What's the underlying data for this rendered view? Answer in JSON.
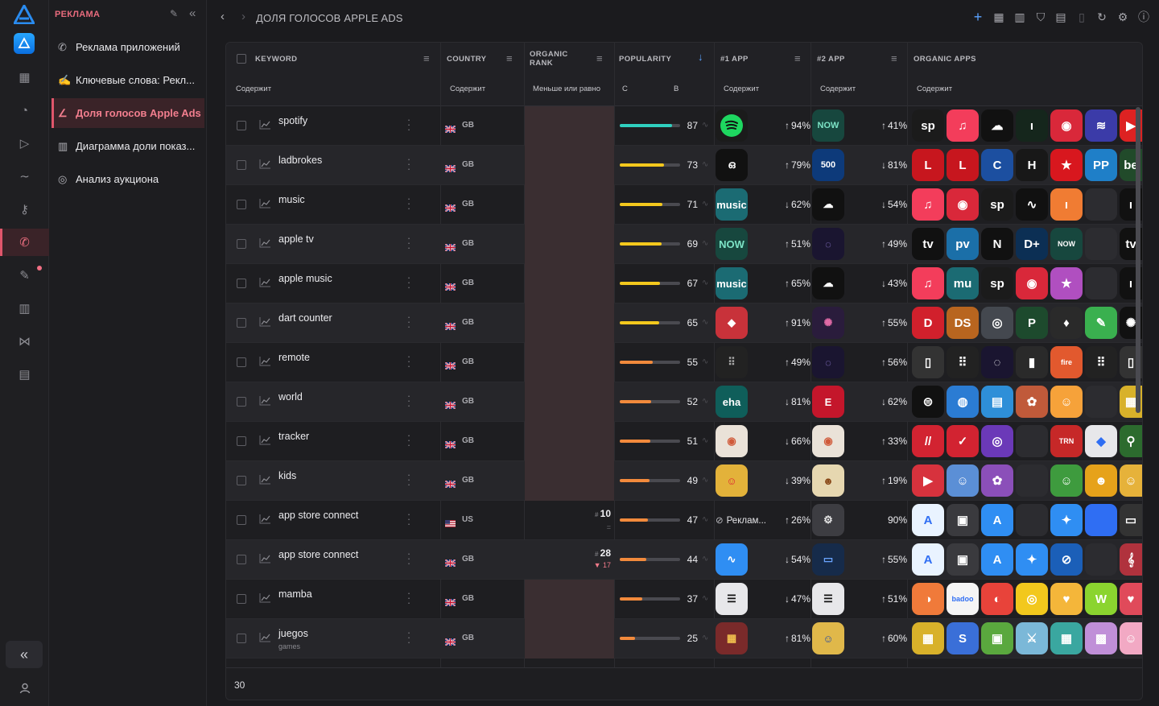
{
  "section_label": "РЕКЛАМА",
  "nav_items": [
    {
      "label": "Реклама приложений",
      "icon": "megaphone-icon",
      "active": false
    },
    {
      "label": "Ключевые слова: Рекл...",
      "icon": "keywords-icon",
      "active": false
    },
    {
      "label": "Доля голосов Apple Ads",
      "icon": "chart-line-icon",
      "active": true
    },
    {
      "label": "Диаграмма доли показ...",
      "icon": "chart-bar-icon",
      "active": false
    },
    {
      "label": "Анализ аукциона",
      "icon": "auction-icon",
      "active": false
    }
  ],
  "page_title": "ДОЛЯ ГОЛОСОВ APPLE ADS",
  "columns": {
    "keyword": "KEYWORD",
    "country": "COUNTRY",
    "organic_rank": "ORGANIC RANK",
    "popularity": "POPULARITY",
    "app1": "#1 APP",
    "app2": "#2 APP",
    "organic_apps": "ORGANIC APPS"
  },
  "filters": {
    "keyword": "Содержит",
    "country": "Содержит",
    "organic_rank": "Меньше или равно",
    "pop_from": "С",
    "pop_to": "В",
    "app1": "Содержит",
    "app2": "Содержит",
    "organic_apps": "Содержит"
  },
  "colors": {
    "accent": "#e0566b",
    "pop_teal": "#2fd0bf",
    "pop_yellow": "#f3c81d",
    "pop_orange": "#f28a3c",
    "rank_empty": "#3a2e31"
  },
  "rows": [
    {
      "keyword": "spotify",
      "sub": "",
      "cc": "GB",
      "rank": "",
      "rank_sub": "",
      "pop": 87,
      "a1_share": "94%",
      "a1_dir": "up",
      "a2_share": "41%",
      "a2_dir": "up",
      "a1": {
        "bg": "#1b1b1b",
        "txt": "",
        "fg": "#1ed760",
        "kind": "spotify"
      },
      "a2": {
        "bg": "#17473e",
        "txt": "NOW",
        "fg": "#7de3c6"
      },
      "org": [
        "#1b1b1b|sp",
        "#f33d5b|♫",
        "#111|☁",
        "#15261c|ı|",
        "#d9283a|◉",
        "#3b3ba8|≋",
        "#d22|▶"
      ]
    },
    {
      "keyword": "ladbrokes",
      "sub": "",
      "cc": "GB",
      "rank": "",
      "rank_sub": "",
      "pop": 73,
      "a1_share": "79%",
      "a1_dir": "up",
      "a2_share": "81%",
      "a2_dir": "down",
      "a1": {
        "bg": "#111",
        "txt": "ഒ",
        "fg": "#fff"
      },
      "a2": {
        "bg": "#0d3a7a",
        "txt": "500",
        "fg": "#fff"
      },
      "org": [
        "#c7161e|L",
        "#c7161e|L",
        "#1c4fa0|C",
        "#181818|H",
        "#d8171e|★",
        "#1f7fc8|PP",
        "#214a2a|be"
      ]
    },
    {
      "keyword": "music",
      "sub": "",
      "cc": "GB",
      "rank": "",
      "rank_sub": "",
      "pop": 71,
      "a1_share": "62%",
      "a1_dir": "down",
      "a2_share": "54%",
      "a2_dir": "down",
      "a1": {
        "bg": "#1b6b73",
        "txt": "music",
        "fg": "#fff"
      },
      "a2": {
        "bg": "#111",
        "txt": "☁",
        "fg": "#fff"
      },
      "org": [
        "#f33d5b|♫",
        "#d9283a|◉",
        "#1b1b1b|sp",
        "#111|∿",
        "#f07c33|ı|",
        "#2c2c30|",
        "#111|ı"
      ]
    },
    {
      "keyword": "apple tv",
      "sub": "",
      "cc": "GB",
      "rank": "",
      "rank_sub": "",
      "pop": 69,
      "a1_share": "51%",
      "a1_dir": "up",
      "a2_share": "49%",
      "a2_dir": "up",
      "a1": {
        "bg": "#17473e",
        "txt": "NOW",
        "fg": "#7de3c6"
      },
      "a2": {
        "bg": "#1a1530",
        "txt": "◌",
        "fg": "#a58cf0"
      },
      "org": [
        "#111|tv",
        "#1b6fa8|pv",
        "#111|N",
        "#0c2f54|D+",
        "#17473e|NOW",
        "#2c2c30|",
        "#111|tv"
      ]
    },
    {
      "keyword": "apple music",
      "sub": "",
      "cc": "GB",
      "rank": "",
      "rank_sub": "",
      "pop": 67,
      "a1_share": "65%",
      "a1_dir": "up",
      "a2_share": "43%",
      "a2_dir": "down",
      "a1": {
        "bg": "#1b6b73",
        "txt": "music",
        "fg": "#fff"
      },
      "a2": {
        "bg": "#111",
        "txt": "☁",
        "fg": "#fff"
      },
      "org": [
        "#f33d5b|♫",
        "#1b6b73|mu",
        "#1b1b1b|sp",
        "#d9283a|◉",
        "#b04fc0|★",
        "#2c2c30|",
        "#111|ı"
      ]
    },
    {
      "keyword": "dart counter",
      "sub": "",
      "cc": "GB",
      "rank": "",
      "rank_sub": "",
      "pop": 65,
      "a1_share": "91%",
      "a1_dir": "up",
      "a2_share": "55%",
      "a2_dir": "up",
      "a1": {
        "bg": "#c8323a",
        "txt": "◆",
        "fg": "#fff"
      },
      "a2": {
        "bg": "#2a1c3c",
        "txt": "✺",
        "fg": "#e06aa6"
      },
      "org": [
        "#d1202c|D",
        "#b8651f|DS",
        "#44484f|◎",
        "#1d4a2d|P",
        "#2a2a2a|♦",
        "#3ab04f|✎",
        "#111|✺"
      ]
    },
    {
      "keyword": "remote",
      "sub": "",
      "cc": "GB",
      "rank": "",
      "rank_sub": "",
      "pop": 55,
      "a1_share": "49%",
      "a1_dir": "up",
      "a2_share": "56%",
      "a2_dir": "up",
      "a1": {
        "bg": "#222",
        "txt": "⠿",
        "fg": "#aaa"
      },
      "a2": {
        "bg": "#1a1530",
        "txt": "◌",
        "fg": "#a58cf0"
      },
      "org": [
        "#333|▯",
        "#222|⠿",
        "#1a1530|◌",
        "#2a2a2a|▮",
        "#e2592e|fire",
        "#222|⠿",
        "#333|▯"
      ]
    },
    {
      "keyword": "world",
      "sub": "",
      "cc": "GB",
      "rank": "",
      "rank_sub": "",
      "pop": 52,
      "a1_share": "81%",
      "a1_dir": "down",
      "a2_share": "62%",
      "a2_dir": "down",
      "a1": {
        "bg": "#0f5e5a",
        "txt": "eha",
        "fg": "#fff"
      },
      "a2": {
        "bg": "#c4162b",
        "txt": "E",
        "fg": "#fff"
      },
      "org": [
        "#111|⊜",
        "#2b7cd3|◍",
        "#2e8fd8|▤",
        "#c05a3a|✿",
        "#f6a23a|☺",
        "#2c2c30|",
        "#d8b12a|▦"
      ]
    },
    {
      "keyword": "tracker",
      "sub": "",
      "cc": "GB",
      "rank": "",
      "rank_sub": "",
      "pop": 51,
      "a1_share": "66%",
      "a1_dir": "down",
      "a2_share": "33%",
      "a2_dir": "up",
      "a1": {
        "bg": "#eae2d8",
        "txt": "◉",
        "fg": "#d05a3a"
      },
      "a2": {
        "bg": "#eae2d8",
        "txt": "◉",
        "fg": "#d05a3a"
      },
      "org": [
        "#d22331|//",
        "#d22331|✓",
        "#6b39b8|◎",
        "#2c2c30|",
        "#c62828|TRN",
        "#e7e7ea|◆",
        "#2c6b2e|⚲"
      ]
    },
    {
      "keyword": "kids",
      "sub": "",
      "cc": "GB",
      "rank": "",
      "rank_sub": "",
      "pop": 49,
      "a1_share": "39%",
      "a1_dir": "down",
      "a2_share": "19%",
      "a2_dir": "up",
      "a1": {
        "bg": "#e3b23a",
        "txt": "☺",
        "fg": "#d23"
      },
      "a2": {
        "bg": "#e6d7b0",
        "txt": "☻",
        "fg": "#8a4a1a"
      },
      "org": [
        "#d7323d|▶",
        "#5b8fd6|☺",
        "#8b4fb9|✿",
        "#2c2c30|",
        "#3e9b3e|☺",
        "#e6a21a|☻",
        "#e6b23a|☺"
      ]
    },
    {
      "keyword": "app store connect",
      "sub": "",
      "cc": "US",
      "rank": "10",
      "rank_sub": "=",
      "pop": 47,
      "a1_share": "26%",
      "a1_dir": "up",
      "a2_share": "90%",
      "a2_dir": "",
      "a1_ad": "Реклам...",
      "a1": {
        "bg": "",
        "txt": "",
        "fg": ""
      },
      "a2": {
        "bg": "#3d3d42",
        "txt": "⚙",
        "fg": "#e6e6e6"
      },
      "org": [
        "#e9f3ff|A",
        "#3a3a3e|▣",
        "#2f8ef3|A",
        "#2c2c30|",
        "#2f8ef3|✦",
        "#2f6ef3|",
        "#333|▭"
      ]
    },
    {
      "keyword": "app store connect",
      "sub": "",
      "cc": "GB",
      "rank": "28",
      "rank_sub": "▼ 17",
      "pop": 44,
      "a1_share": "54%",
      "a1_dir": "down",
      "a2_share": "55%",
      "a2_dir": "up",
      "a1": {
        "bg": "#2f8ef3",
        "txt": "∿",
        "fg": "#fff"
      },
      "a2": {
        "bg": "#162b4a",
        "txt": "▭",
        "fg": "#6aa4ff"
      },
      "org": [
        "#e9f3ff|A",
        "#3a3a3e|▣",
        "#2f8ef3|A",
        "#2f8ef3|✦",
        "#1b5fb8|⊘",
        "#2c2c30|",
        "#b0323d|𝄞"
      ]
    },
    {
      "keyword": "mamba",
      "sub": "",
      "cc": "GB",
      "rank": "",
      "rank_sub": "",
      "pop": 37,
      "a1_share": "47%",
      "a1_dir": "down",
      "a2_share": "51%",
      "a2_dir": "up",
      "a1": {
        "bg": "#e7e7ea",
        "txt": "☰",
        "fg": "#111"
      },
      "a2": {
        "bg": "#e7e7ea",
        "txt": "☰",
        "fg": "#111"
      },
      "org": [
        "#f07a3a|◑",
        "#f5f5f5|badoo",
        "#e8433a|◐",
        "#f2c81d|◎",
        "#f4b63a|♥",
        "#8bd42f|W",
        "#e04a5a|♥"
      ]
    },
    {
      "keyword": "juegos",
      "sub": "games",
      "cc": "GB",
      "rank": "",
      "rank_sub": "",
      "pop": 25,
      "a1_share": "81%",
      "a1_dir": "up",
      "a2_share": "60%",
      "a2_dir": "up",
      "a1": {
        "bg": "#7a2a2a",
        "txt": "▦",
        "fg": "#f2c14e"
      },
      "a2": {
        "bg": "#e0b84a",
        "txt": "☺",
        "fg": "#2b4ca0"
      },
      "org": [
        "#d8b12a|▦",
        "#3a6fd8|S",
        "#5aa83e|▣",
        "#7bb8d8|⚔",
        "#3aa7a0|▦",
        "#c08fd8|▩",
        "#f2a9c4|☺"
      ]
    }
  ],
  "footer_count": "30"
}
